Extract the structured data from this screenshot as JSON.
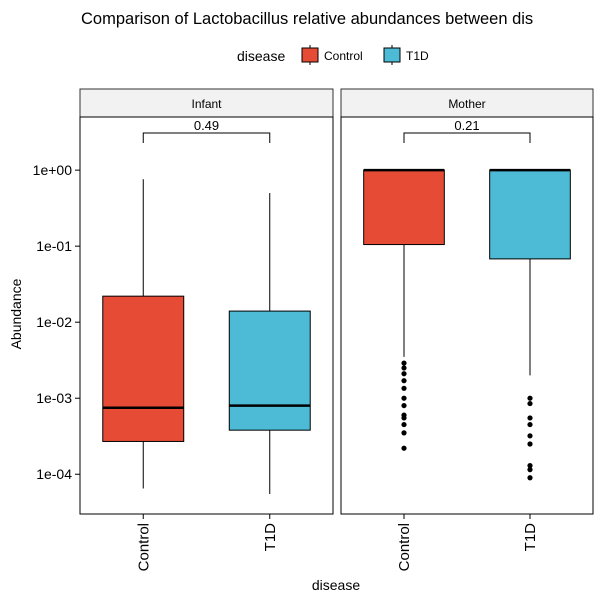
{
  "chart_data": {
    "type": "box",
    "title": "Comparison of Lactobacillus relative abundances between dis",
    "xlabel": "disease",
    "ylabel": "Abundance",
    "y_scale": "log10",
    "ylim": [
      3e-05,
      5
    ],
    "y_ticks": [
      "1e-04",
      "1e-03",
      "1e-02",
      "1e-01",
      "1e+00"
    ],
    "legend": {
      "title": "disease",
      "position": "top",
      "entries": [
        {
          "label": "Control",
          "color": "#E64B35"
        },
        {
          "label": "T1D",
          "color": "#4DBBD5"
        }
      ]
    },
    "categories": [
      "Control",
      "T1D"
    ],
    "panels": [
      {
        "name": "Infant",
        "p_value": "0.49",
        "boxes": [
          {
            "group": "Control",
            "whisker_low": 6.5e-05,
            "q1": 0.00027,
            "median": 0.00075,
            "q3": 0.022,
            "whisker_high": 0.76,
            "outliers": []
          },
          {
            "group": "T1D",
            "whisker_low": 5.5e-05,
            "q1": 0.00038,
            "median": 0.0008,
            "q3": 0.014,
            "whisker_high": 0.5,
            "outliers": []
          }
        ]
      },
      {
        "name": "Mother",
        "p_value": "0.21",
        "boxes": [
          {
            "group": "Control",
            "whisker_low": 0.0035,
            "q1": 0.105,
            "median": 1.0,
            "q3": 1.0,
            "whisker_high": 1.0,
            "outliers": [
              0.0029,
              0.0025,
              0.0021,
              0.0017,
              0.00135,
              0.001,
              0.0008,
              0.0006,
              0.00055,
              0.00045,
              0.00035,
              0.00022
            ]
          },
          {
            "group": "T1D",
            "whisker_low": 0.002,
            "q1": 0.068,
            "median": 1.0,
            "q3": 1.0,
            "whisker_high": 1.0,
            "outliers": [
              0.001,
              0.00085,
              0.00055,
              0.00045,
              0.00032,
              0.00025,
              0.00013,
              0.000115,
              9e-05
            ]
          }
        ]
      }
    ]
  }
}
